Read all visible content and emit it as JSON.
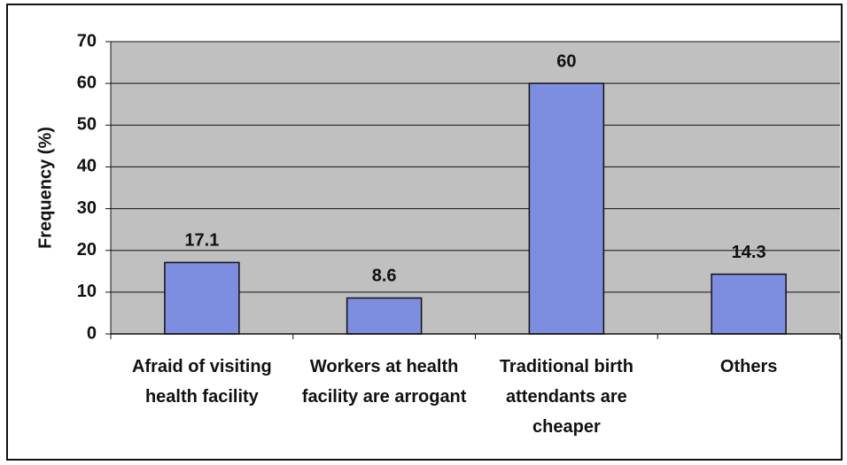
{
  "chart_data": {
    "type": "bar",
    "y_label": "Frequency (%)",
    "categories": [
      "Afraid of visiting health facility",
      "Workers at health facility are arrogant",
      "Traditional birth attendants are cheaper",
      "Others"
    ],
    "values": [
      17.1,
      8.6,
      60,
      14.3
    ],
    "color": "#7d8de0",
    "ylim": [
      0,
      70
    ],
    "yticks": [
      0,
      10,
      20,
      30,
      40,
      50,
      60,
      70
    ],
    "grid": true
  }
}
